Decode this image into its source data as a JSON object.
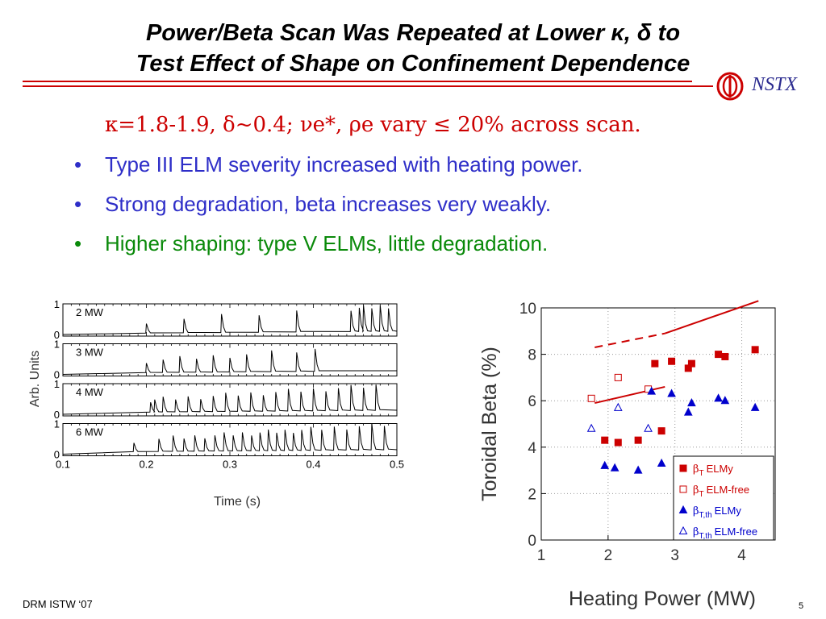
{
  "slide": {
    "title_line1": "Power/Beta Scan Was Repeated at Lower κ, δ  to",
    "title_line2": "Test Effect of Shape on Confinement Dependence",
    "logo_text": "NSTX",
    "footer_left": "DRM ISTW ‘07",
    "page_number": "5",
    "colors": {
      "rule": "#cc0000",
      "red": "#cc0000",
      "blue": "#2e2ec8",
      "green": "#0a8a0a"
    }
  },
  "bullets": [
    {
      "marker": "",
      "text": "κ=1.8-1.9, δ~0.4; νe*, ρe vary ≤ 20% across scan.",
      "color": "red"
    },
    {
      "marker": "•",
      "text": "Type III ELM severity increased with heating power.",
      "color": "blue"
    },
    {
      "marker": "•",
      "text": "Strong degradation, beta increases very weakly.",
      "color": "blue"
    },
    {
      "marker": "•",
      "text": "Higher shaping: type V ELMs, little degradation.",
      "color": "green"
    }
  ],
  "left_chart": {
    "ylabel": "Arb. Units",
    "xlabel": "Time (s)",
    "x_ticks": [
      "0.1",
      "0.2",
      "0.3",
      "0.4",
      "0.5"
    ],
    "panel_y_ticks": [
      "1",
      "0"
    ],
    "panels": [
      {
        "label": "2 MW"
      },
      {
        "label": "3 MW"
      },
      {
        "label": "4 MW"
      },
      {
        "label": "6 MW"
      }
    ]
  },
  "chart_data": [
    {
      "type": "line",
      "title": "",
      "xlabel": "Time (s)",
      "ylabel": "Arb. Units",
      "xlim": [
        0.1,
        0.5
      ],
      "ylim": [
        0,
        1
      ],
      "series": [
        {
          "name": "2 MW",
          "elm_times": [
            0.2,
            0.245,
            0.29,
            0.335,
            0.38,
            0.445,
            0.455,
            0.46,
            0.47,
            0.48,
            0.49
          ]
        },
        {
          "name": "3 MW",
          "elm_times": [
            0.2,
            0.22,
            0.24,
            0.26,
            0.28,
            0.3,
            0.32,
            0.35,
            0.38,
            0.402,
            0.406
          ]
        },
        {
          "name": "4 MW",
          "elm_times": [
            0.205,
            0.21,
            0.22,
            0.235,
            0.25,
            0.265,
            0.28,
            0.295,
            0.31,
            0.325,
            0.34,
            0.355,
            0.37,
            0.385,
            0.4,
            0.415,
            0.43,
            0.445,
            0.46,
            0.475
          ]
        },
        {
          "name": "6 MW",
          "elm_times": [
            0.185,
            0.215,
            0.232,
            0.245,
            0.258,
            0.27,
            0.282,
            0.293,
            0.304,
            0.315,
            0.326,
            0.336,
            0.346,
            0.356,
            0.366,
            0.376,
            0.386,
            0.397,
            0.41,
            0.425,
            0.44,
            0.455,
            0.47,
            0.485
          ]
        }
      ]
    },
    {
      "type": "scatter",
      "title": "",
      "xlabel": "Heating Power (MW)",
      "ylabel": "Toroidal Beta (%)",
      "xlim": [
        1,
        4.5
      ],
      "ylim": [
        0,
        10
      ],
      "x_ticks": [
        "1",
        "2",
        "3",
        "4"
      ],
      "y_ticks": [
        "0",
        "2",
        "4",
        "6",
        "8",
        "10"
      ],
      "series": [
        {
          "name": "βT ELMy",
          "legend_symbol": "β",
          "legend_sub": "T",
          "legend_label": "ELMy",
          "marker": "square-filled",
          "color": "#cc0000",
          "points": [
            [
              1.95,
              4.3
            ],
            [
              2.15,
              4.2
            ],
            [
              2.45,
              4.3
            ],
            [
              2.7,
              7.6
            ],
            [
              2.8,
              4.7
            ],
            [
              2.95,
              7.7
            ],
            [
              3.2,
              7.4
            ],
            [
              3.25,
              7.6
            ],
            [
              3.65,
              8.0
            ],
            [
              3.75,
              7.9
            ],
            [
              4.2,
              8.2
            ]
          ]
        },
        {
          "name": "βT ELM-free",
          "legend_symbol": "β",
          "legend_sub": "T",
          "legend_label": "ELM-free",
          "marker": "square-open",
          "color": "#cc0000",
          "points": [
            [
              1.75,
              6.1
            ],
            [
              2.15,
              7.0
            ],
            [
              2.6,
              6.5
            ]
          ]
        },
        {
          "name": "βT,th ELMy",
          "legend_symbol": "β",
          "legend_sub": "T,th",
          "legend_label": "ELMy",
          "marker": "triangle-filled",
          "color": "#0000cc",
          "points": [
            [
              1.95,
              3.2
            ],
            [
              2.1,
              3.1
            ],
            [
              2.45,
              3.0
            ],
            [
              2.65,
              6.4
            ],
            [
              2.8,
              3.3
            ],
            [
              2.95,
              6.3
            ],
            [
              3.2,
              5.5
            ],
            [
              3.25,
              5.9
            ],
            [
              3.65,
              6.1
            ],
            [
              3.75,
              6.0
            ],
            [
              4.2,
              5.7
            ]
          ]
        },
        {
          "name": "βT,th ELM-free",
          "legend_symbol": "β",
          "legend_sub": "T,th",
          "legend_label": "ELM-free",
          "marker": "triangle-open",
          "color": "#0000cc",
          "points": [
            [
              1.75,
              4.8
            ],
            [
              2.15,
              5.7
            ],
            [
              2.6,
              4.8
            ]
          ]
        }
      ],
      "trend_lines": [
        {
          "name": "high-shaping fit",
          "style": "dashed",
          "color": "#cc0000",
          "points": [
            [
              1.8,
              8.3
            ],
            [
              2.85,
              8.9
            ]
          ]
        },
        {
          "name": "high-shaping fit solid",
          "style": "solid",
          "color": "#cc0000",
          "points": [
            [
              2.85,
              8.9
            ],
            [
              4.25,
              10.3
            ]
          ]
        },
        {
          "name": "lower-shaping fit",
          "style": "solid",
          "color": "#cc0000",
          "points": [
            [
              1.8,
              5.9
            ],
            [
              2.85,
              6.6
            ]
          ]
        }
      ]
    }
  ]
}
